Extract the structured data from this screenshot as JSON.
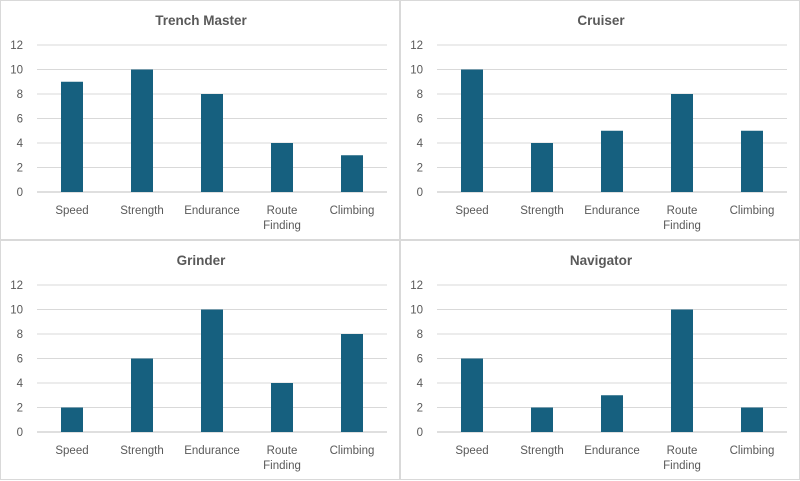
{
  "colors": {
    "bar": "#16607F",
    "grid": "#D9D9D9",
    "text": "#595959"
  },
  "chart_data": [
    {
      "type": "bar",
      "title": "Trench Master",
      "categories": [
        "Speed",
        "Strength",
        "Endurance",
        "Route Finding",
        "Climbing"
      ],
      "values": [
        9,
        10,
        8,
        4,
        3
      ],
      "ylim": [
        0,
        12
      ],
      "yticks": [
        0,
        2,
        4,
        6,
        8,
        10,
        12
      ],
      "xlabel": "",
      "ylabel": "",
      "grid": true,
      "legend": "none"
    },
    {
      "type": "bar",
      "title": "Cruiser",
      "categories": [
        "Speed",
        "Strength",
        "Endurance",
        "Route Finding",
        "Climbing"
      ],
      "values": [
        10,
        4,
        5,
        8,
        5
      ],
      "ylim": [
        0,
        12
      ],
      "yticks": [
        0,
        2,
        4,
        6,
        8,
        10,
        12
      ],
      "xlabel": "",
      "ylabel": "",
      "grid": true,
      "legend": "none"
    },
    {
      "type": "bar",
      "title": "Grinder",
      "categories": [
        "Speed",
        "Strength",
        "Endurance",
        "Route Finding",
        "Climbing"
      ],
      "values": [
        2,
        6,
        10,
        4,
        8
      ],
      "ylim": [
        0,
        12
      ],
      "yticks": [
        0,
        2,
        4,
        6,
        8,
        10,
        12
      ],
      "xlabel": "",
      "ylabel": "",
      "grid": true,
      "legend": "none"
    },
    {
      "type": "bar",
      "title": "Navigator",
      "categories": [
        "Speed",
        "Strength",
        "Endurance",
        "Route Finding",
        "Climbing"
      ],
      "values": [
        6,
        2,
        3,
        10,
        2
      ],
      "ylim": [
        0,
        12
      ],
      "yticks": [
        0,
        2,
        4,
        6,
        8,
        10,
        12
      ],
      "xlabel": "",
      "ylabel": "",
      "grid": true,
      "legend": "none"
    }
  ]
}
